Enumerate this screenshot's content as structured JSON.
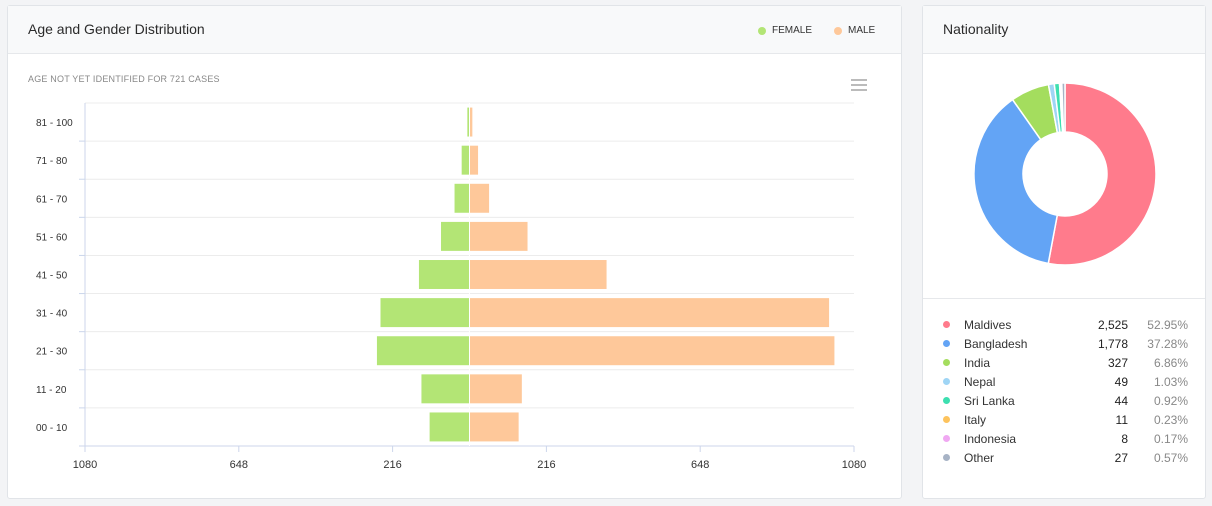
{
  "age_panel": {
    "title": "Age and Gender Distribution",
    "note": "AGE NOT YET IDENTIFIED FOR 721 CASES",
    "legend": [
      {
        "label": "FEMALE",
        "color": "#b3e575"
      },
      {
        "label": "MALE",
        "color": "#fec89a"
      }
    ],
    "menu_icon": "hamburger-menu-icon"
  },
  "nationality_panel": {
    "title": "Nationality",
    "rows": [
      {
        "name": "Maldives",
        "count": "2,525",
        "pct": "52.95%",
        "color": "#ff7b8c"
      },
      {
        "name": "Bangladesh",
        "count": "1,778",
        "pct": "37.28%",
        "color": "#63a4f5"
      },
      {
        "name": "India",
        "count": "327",
        "pct": "6.86%",
        "color": "#a4dd5e"
      },
      {
        "name": "Nepal",
        "count": "49",
        "pct": "1.03%",
        "color": "#9fd5f5"
      },
      {
        "name": "Sri Lanka",
        "count": "44",
        "pct": "0.92%",
        "color": "#3ddfb0"
      },
      {
        "name": "Italy",
        "count": "11",
        "pct": "0.23%",
        "color": "#fdc35d"
      },
      {
        "name": "Indonesia",
        "count": "8",
        "pct": "0.17%",
        "color": "#f0a8f2"
      },
      {
        "name": "Other",
        "count": "27",
        "pct": "0.57%",
        "color": "#a7b3c5"
      }
    ]
  },
  "chart_data": [
    {
      "type": "bar",
      "orientation": "horizontal",
      "subtype": "population-pyramid",
      "title": "Age and Gender Distribution",
      "categories": [
        "81 - 100",
        "71 - 80",
        "61 - 70",
        "51 - 60",
        "41 - 50",
        "31 - 40",
        "21 - 30",
        "11 - 20",
        "00 - 10"
      ],
      "series": [
        {
          "name": "FEMALE",
          "color": "#b3e575",
          "side": "left",
          "values": [
            6,
            22,
            42,
            80,
            142,
            250,
            260,
            135,
            112
          ]
        },
        {
          "name": "MALE",
          "color": "#fec89a",
          "side": "right",
          "values": [
            8,
            24,
            55,
            163,
            385,
            1010,
            1025,
            147,
            138
          ]
        }
      ],
      "xlim": [
        -1080,
        1080
      ],
      "xticks": [
        -1080,
        -648,
        -216,
        216,
        648,
        1080
      ],
      "xtick_labels": [
        "1080",
        "648",
        "216",
        "216",
        "648",
        "1080"
      ],
      "grid": true
    },
    {
      "type": "pie",
      "subtype": "donut",
      "title": "Nationality",
      "categories": [
        "Maldives",
        "Bangladesh",
        "India",
        "Nepal",
        "Sri Lanka",
        "Italy",
        "Indonesia",
        "Other"
      ],
      "values": [
        2525,
        1778,
        327,
        49,
        44,
        11,
        8,
        27
      ],
      "colors": [
        "#ff7b8c",
        "#63a4f5",
        "#a4dd5e",
        "#9fd5f5",
        "#3ddfb0",
        "#fdc35d",
        "#f0a8f2",
        "#a7b3c5"
      ]
    }
  ]
}
